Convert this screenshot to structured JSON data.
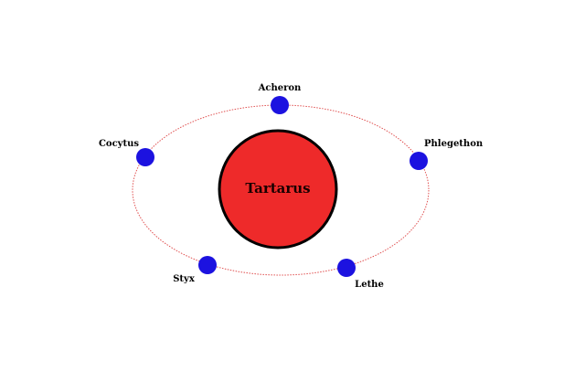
{
  "diagram": {
    "center": {
      "label": "Tartarus"
    },
    "rivers": [
      {
        "key": "acheron",
        "label": "Acheron"
      },
      {
        "key": "phlegethon",
        "label": "Phlegethon"
      },
      {
        "key": "lethe",
        "label": "Lethe"
      },
      {
        "key": "styx",
        "label": "Styx"
      },
      {
        "key": "cocytus",
        "label": "Cocytus"
      }
    ]
  },
  "colors": {
    "center_fill": "#ee2a2a",
    "center_stroke": "#000000",
    "node_fill": "#1c12e0",
    "orbit_stroke": "#e05050"
  }
}
